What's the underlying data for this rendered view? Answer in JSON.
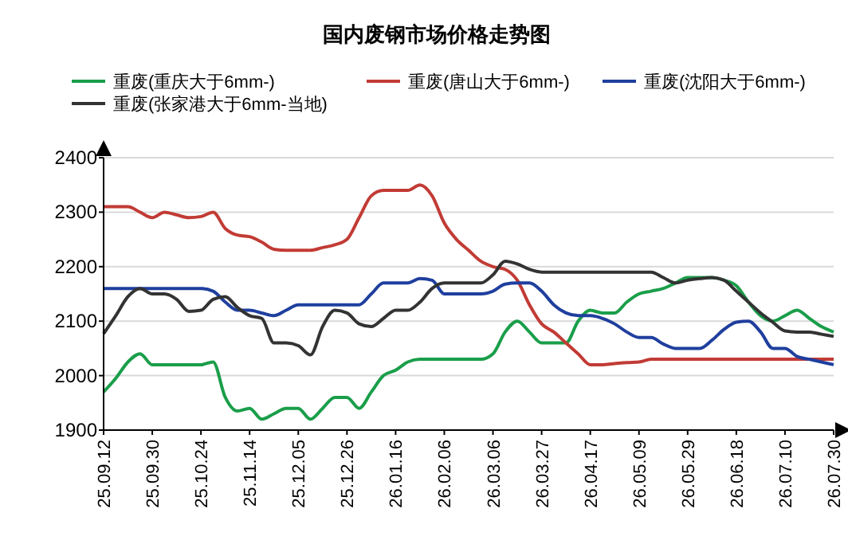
{
  "chart_data": {
    "type": "line",
    "title": "国内废钢市场价格走势图",
    "categories": [
      "25.09.12",
      null,
      null,
      null,
      "25.09.30",
      null,
      null,
      null,
      "25.10.24",
      null,
      null,
      null,
      "25.11.14",
      null,
      null,
      null,
      "25.12.05",
      null,
      null,
      null,
      "25.12.26",
      null,
      null,
      null,
      "26.01.16",
      null,
      null,
      null,
      "26.02.06",
      null,
      null,
      null,
      "26.03.06",
      null,
      null,
      null,
      "26.03.27",
      null,
      null,
      null,
      "26.04.17",
      null,
      null,
      null,
      "26.05.09",
      null,
      null,
      null,
      "26.05.29",
      null,
      null,
      null,
      "26.06.18",
      null,
      null,
      null,
      "26.07.10",
      null,
      null,
      null,
      "26.07.30"
    ],
    "series": [
      {
        "name": "重废(重庆大于6mm-)",
        "color": "#1a9e4a",
        "values": [
          1970,
          1995,
          2025,
          2040,
          2020,
          2020,
          2020,
          2020,
          2020,
          2025,
          1960,
          1935,
          1940,
          1920,
          1930,
          1940,
          1940,
          1920,
          1940,
          1960,
          1960,
          1940,
          1970,
          2000,
          2010,
          2025,
          2030,
          2030,
          2030,
          2030,
          2030,
          2030,
          2040,
          2080,
          2100,
          2080,
          2060,
          2060,
          2060,
          2100,
          2120,
          2115,
          2115,
          2135,
          2150,
          2155,
          2160,
          2170,
          2180,
          2180,
          2180,
          2175,
          2165,
          2135,
          2110,
          2100,
          2110,
          2120,
          2105,
          2090,
          2080
        ]
      },
      {
        "name": "重废(唐山大于6mm-)",
        "color": "#c23b35",
        "values": [
          2310,
          2310,
          2310,
          2300,
          2290,
          2300,
          2295,
          2290,
          2292,
          2300,
          2270,
          2258,
          2255,
          2245,
          2232,
          2230,
          2230,
          2230,
          2235,
          2240,
          2250,
          2290,
          2330,
          2340,
          2340,
          2340,
          2350,
          2330,
          2280,
          2250,
          2230,
          2210,
          2200,
          2195,
          2175,
          2130,
          2095,
          2080,
          2060,
          2040,
          2020,
          2020,
          2022,
          2024,
          2025,
          2030,
          2030,
          2030,
          2030,
          2030,
          2030,
          2030,
          2030,
          2030,
          2030,
          2030,
          2030,
          2030,
          2030,
          2030,
          2030
        ]
      },
      {
        "name": "重废(沈阳大于6mm-)",
        "color": "#1f3f9e",
        "values": [
          2160,
          2160,
          2160,
          2160,
          2160,
          2160,
          2160,
          2160,
          2160,
          2155,
          2135,
          2120,
          2120,
          2115,
          2110,
          2120,
          2130,
          2130,
          2130,
          2130,
          2130,
          2130,
          2150,
          2170,
          2170,
          2170,
          2178,
          2175,
          2150,
          2150,
          2150,
          2150,
          2155,
          2168,
          2170,
          2170,
          2155,
          2130,
          2115,
          2110,
          2110,
          2105,
          2095,
          2080,
          2070,
          2070,
          2058,
          2050,
          2050,
          2050,
          2065,
          2085,
          2098,
          2100,
          2080,
          2050,
          2050,
          2035,
          2030,
          2025,
          2020
        ]
      },
      {
        "name": "重废(张家港大于6mm-当地)",
        "color": "#333333",
        "values": [
          2077,
          2110,
          2145,
          2160,
          2150,
          2150,
          2140,
          2118,
          2120,
          2140,
          2145,
          2125,
          2110,
          2105,
          2060,
          2060,
          2055,
          2038,
          2090,
          2120,
          2115,
          2095,
          2090,
          2105,
          2120,
          2120,
          2135,
          2160,
          2170,
          2170,
          2170,
          2170,
          2185,
          2210,
          2205,
          2195,
          2190,
          2190,
          2190,
          2190,
          2190,
          2190,
          2190,
          2190,
          2190,
          2190,
          2180,
          2170,
          2175,
          2178,
          2180,
          2175,
          2155,
          2135,
          2115,
          2098,
          2082,
          2080,
          2080,
          2076,
          2072
        ]
      }
    ],
    "ylim": [
      1900,
      2400
    ],
    "yticks": [
      1900,
      2000,
      2100,
      2200,
      2300,
      2400
    ],
    "grid": "y",
    "legend": "top"
  }
}
